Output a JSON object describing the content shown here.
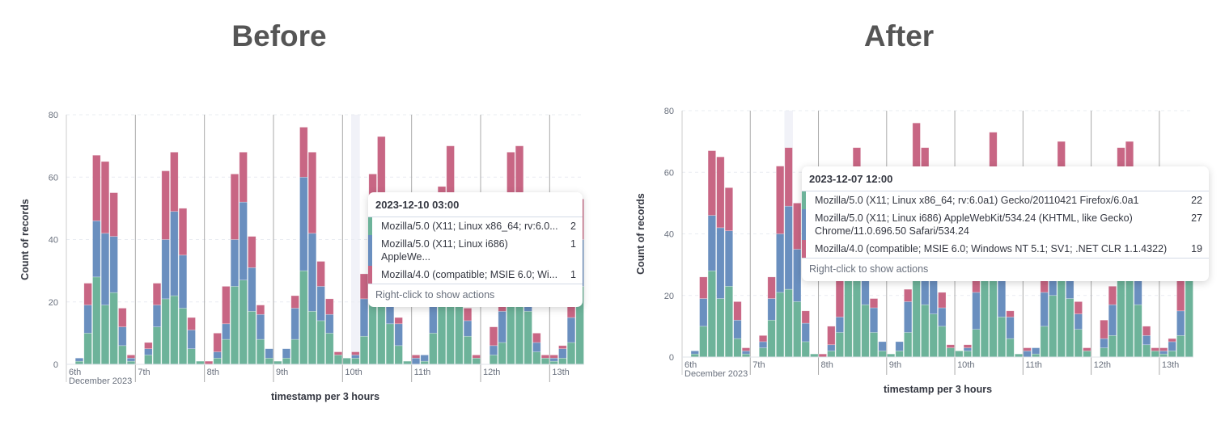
{
  "titles": {
    "before": "Before",
    "after": "After"
  },
  "colors": {
    "series1": "#6db39a",
    "series2": "#6a8fbf",
    "series3": "#c86684",
    "highlight": "#f1f2f8",
    "grid": "#e9ecf2",
    "day_line": "#aaaaaa"
  },
  "tooltips": {
    "before": {
      "header": "2023-12-10 03:00",
      "rows": [
        {
          "label": "Mozilla/5.0 (X11; Linux x86_64; rv:6.0...",
          "value": "2"
        },
        {
          "label": "Mozilla/5.0 (X11; Linux i686) AppleWe...",
          "value": "1"
        },
        {
          "label": "Mozilla/4.0 (compatible; MSIE 6.0; Wi...",
          "value": "1"
        }
      ],
      "footer": "Right-click to show actions"
    },
    "after": {
      "header": "2023-12-07 12:00",
      "rows": [
        {
          "label": "Mozilla/5.0 (X11; Linux x86_64; rv:6.0a1) Gecko/20110421 Firefox/6.0a1",
          "value": "22"
        },
        {
          "label": "Mozilla/5.0 (X11; Linux i686) AppleWebKit/534.24 (KHTML, like Gecko)\nChrome/11.0.696.50 Safari/534.24",
          "value": "27"
        },
        {
          "label": "Mozilla/4.0 (compatible; MSIE 6.0; Windows NT 5.1; SV1; .NET CLR 1.1.4322)",
          "value": "19"
        }
      ],
      "footer": "Right-click to show actions"
    }
  },
  "chart_data": [
    {
      "panel": "before",
      "type": "bar",
      "stacked": true,
      "xlabel": "timestamp per 3 hours",
      "ylabel": "Count of records",
      "ylim": [
        0,
        80
      ],
      "yticks": [
        0,
        20,
        40,
        60,
        80
      ],
      "xticks": [
        "6th",
        "7th",
        "8th",
        "9th",
        "10th",
        "11th",
        "12th",
        "13th"
      ],
      "xtick_sub": "December 2023",
      "x_start": "2023-12-06 00:00",
      "interval": "3 hours",
      "highlighted": "2023-12-10 03:00",
      "grid": true,
      "series": [
        {
          "name": "Mozilla/5.0 (X11; Linux x86_64; rv:6.0a1) Gecko/20110421 Firefox/6.0a1",
          "color": "#6db39a",
          "values": [
            0,
            1,
            10,
            28,
            19,
            23,
            6,
            1,
            0,
            3,
            12,
            21,
            22,
            18,
            5,
            1,
            0,
            2,
            8,
            25,
            27,
            17,
            8,
            2,
            1,
            2,
            8,
            30,
            17,
            14,
            10,
            3,
            2,
            2,
            9,
            30,
            30,
            13,
            6,
            1,
            0,
            1,
            10,
            20,
            30,
            19,
            9,
            2,
            0,
            3,
            7,
            26,
            26,
            17,
            4,
            2,
            1,
            2,
            7,
            25
          ]
        },
        {
          "name": "Mozilla/5.0 (X11; Linux i686) AppleWebKit/534.24 (KHTML, like Gecko) Chrome/11.0.696.50 Safari/534.24",
          "color": "#6a8fbf",
          "values": [
            0,
            1,
            9,
            18,
            23,
            18,
            6,
            1,
            0,
            2,
            7,
            19,
            27,
            17,
            6,
            0,
            0,
            2,
            5,
            15,
            25,
            14,
            8,
            3,
            0,
            3,
            10,
            30,
            25,
            11,
            6,
            0,
            0,
            1,
            12,
            18,
            20,
            20,
            7,
            0,
            2,
            2,
            11,
            17,
            18,
            14,
            5,
            0,
            0,
            3,
            10,
            20,
            22,
            14,
            3,
            0,
            1,
            3,
            8,
            15
          ]
        },
        {
          "name": "Mozilla/4.0 (compatible; MSIE 6.0; Windows NT 5.1; SV1; .NET CLR 1.1.4322)",
          "color": "#c86684",
          "values": [
            0,
            0,
            7,
            21,
            23,
            14,
            6,
            1,
            0,
            2,
            7,
            22,
            19,
            15,
            4,
            0,
            1,
            6,
            12,
            21,
            16,
            10,
            3,
            0,
            0,
            0,
            4,
            16,
            26,
            8,
            5,
            1,
            0,
            1,
            8,
            13,
            23,
            12,
            2,
            0,
            1,
            0,
            9,
            20,
            22,
            6,
            4,
            1,
            0,
            6,
            6,
            22,
            22,
            8,
            3,
            1,
            1,
            1,
            11,
            13
          ]
        }
      ]
    },
    {
      "panel": "after",
      "type": "bar",
      "stacked": true,
      "xlabel": "timestamp per 3 hours",
      "ylabel": "Count of records",
      "ylim": [
        0,
        80
      ],
      "yticks": [
        0,
        20,
        40,
        60,
        80
      ],
      "xticks": [
        "6th",
        "7th",
        "8th",
        "9th",
        "10th",
        "11th",
        "12th",
        "13th"
      ],
      "xtick_sub": "December 2023",
      "x_start": "2023-12-06 00:00",
      "interval": "3 hours",
      "highlighted": "2023-12-07 12:00",
      "grid": true,
      "series": [
        {
          "name": "Mozilla/5.0 (X11; Linux x86_64; rv:6.0a1) Gecko/20110421 Firefox/6.0a1",
          "color": "#6db39a",
          "values": [
            0,
            1,
            10,
            28,
            19,
            23,
            6,
            1,
            0,
            3,
            12,
            21,
            22,
            18,
            5,
            1,
            0,
            2,
            8,
            25,
            27,
            17,
            8,
            2,
            1,
            2,
            8,
            30,
            17,
            14,
            10,
            3,
            2,
            2,
            9,
            30,
            30,
            13,
            6,
            1,
            0,
            1,
            10,
            20,
            30,
            19,
            9,
            2,
            0,
            3,
            7,
            26,
            26,
            17,
            4,
            2,
            1,
            2,
            7,
            25
          ]
        },
        {
          "name": "Mozilla/5.0 (X11; Linux i686) AppleWebKit/534.24 (KHTML, like Gecko) Chrome/11.0.696.50 Safari/534.24",
          "color": "#6a8fbf",
          "values": [
            0,
            1,
            9,
            18,
            23,
            18,
            6,
            1,
            0,
            2,
            7,
            19,
            27,
            17,
            6,
            0,
            0,
            2,
            5,
            15,
            25,
            14,
            8,
            3,
            0,
            3,
            10,
            30,
            25,
            11,
            6,
            0,
            0,
            1,
            12,
            18,
            20,
            20,
            7,
            0,
            2,
            2,
            11,
            17,
            18,
            14,
            5,
            0,
            0,
            3,
            10,
            20,
            22,
            14,
            3,
            0,
            1,
            3,
            8,
            15
          ]
        },
        {
          "name": "Mozilla/4.0 (compatible; MSIE 6.0; Windows NT 5.1; SV1; .NET CLR 1.1.4322)",
          "color": "#c86684",
          "values": [
            0,
            0,
            7,
            21,
            23,
            14,
            6,
            1,
            0,
            2,
            7,
            22,
            19,
            15,
            4,
            0,
            1,
            6,
            12,
            21,
            16,
            10,
            3,
            0,
            0,
            0,
            4,
            16,
            26,
            8,
            5,
            1,
            0,
            1,
            8,
            13,
            23,
            12,
            2,
            0,
            1,
            0,
            9,
            20,
            22,
            6,
            4,
            1,
            0,
            6,
            6,
            22,
            22,
            8,
            3,
            1,
            1,
            1,
            11,
            13
          ]
        }
      ]
    }
  ]
}
